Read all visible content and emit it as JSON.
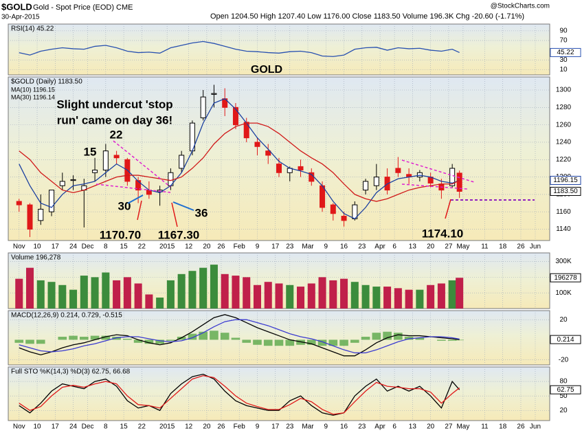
{
  "header": {
    "symbol": "$GOLD",
    "name": "Gold - Spot Price (EOD) CME",
    "date": "30-Apr-2015",
    "quote": "Open 1204.50  High 1207.40  Low 1176.00  Close 1183.50  Volume 196.3K  Chg -20.60 (-1.71%)",
    "source": "@StockCharts.com"
  },
  "chart_data": [
    {
      "type": "line",
      "title": "RSI(14) 45.22",
      "x": [
        0,
        3,
        6,
        9,
        12,
        15,
        18,
        21,
        24,
        27,
        30,
        33,
        36,
        39,
        42,
        45,
        48,
        51,
        54,
        57,
        60,
        63,
        66,
        69,
        72,
        75,
        78,
        81,
        84,
        87,
        90,
        93,
        96,
        99,
        102,
        105,
        108,
        111,
        114,
        117,
        120,
        122
      ],
      "xlim": [
        -3,
        147
      ],
      "ylim": [
        -1,
        104
      ],
      "yticks": [
        90,
        70,
        30,
        10
      ],
      "series": [
        {
          "color": "#2850b0",
          "values": [
            45,
            40,
            48,
            52,
            55,
            53,
            52,
            58,
            60,
            55,
            48,
            45,
            46,
            44,
            55,
            60,
            65,
            68,
            64,
            58,
            52,
            48,
            47,
            45,
            44,
            47,
            48,
            45,
            38,
            37,
            40,
            52,
            55,
            56,
            50,
            55,
            53,
            54,
            50,
            48,
            52,
            45.22
          ]
        }
      ]
    },
    {
      "type": "candlestick",
      "title": "$GOLD (Daily) 1183.50",
      "x": [
        0,
        3,
        6,
        9,
        12,
        15,
        18,
        21,
        24,
        27,
        30,
        33,
        36,
        39,
        42,
        45,
        48,
        51,
        54,
        57,
        60,
        63,
        66,
        69,
        72,
        75,
        78,
        81,
        84,
        87,
        90,
        93,
        96,
        99,
        102,
        105,
        108,
        111,
        114,
        117,
        120,
        122
      ],
      "open": [
        1172,
        1168,
        1150,
        1160,
        1190,
        1196,
        1185,
        1205,
        1208,
        1225,
        1220,
        1196,
        1185,
        1183,
        1190,
        1210,
        1230,
        1268,
        1295,
        1290,
        1280,
        1263,
        1240,
        1230,
        1215,
        1205,
        1212,
        1205,
        1190,
        1168,
        1155,
        1152,
        1185,
        1190,
        1200,
        1210,
        1203,
        1200,
        1200,
        1192,
        1190,
        1204.5
      ],
      "high": [
        1175,
        1170,
        1180,
        1185,
        1205,
        1202,
        1198,
        1222,
        1238,
        1230,
        1222,
        1200,
        1195,
        1190,
        1210,
        1230,
        1265,
        1300,
        1306,
        1302,
        1285,
        1268,
        1245,
        1238,
        1222,
        1212,
        1220,
        1210,
        1195,
        1170,
        1160,
        1172,
        1198,
        1215,
        1210,
        1223,
        1210,
        1208,
        1205,
        1198,
        1215,
        1207.4
      ],
      "low": [
        1160,
        1131,
        1145,
        1155,
        1185,
        1185,
        1142,
        1195,
        1200,
        1215,
        1190,
        1170,
        1175,
        1167,
        1185,
        1205,
        1225,
        1265,
        1280,
        1270,
        1255,
        1240,
        1225,
        1215,
        1200,
        1195,
        1200,
        1190,
        1160,
        1150,
        1143,
        1150,
        1180,
        1185,
        1180,
        1200,
        1192,
        1195,
        1188,
        1175,
        1188,
        1176
      ],
      "close": [
        1168,
        1140,
        1163,
        1185,
        1195,
        1197,
        1190,
        1208,
        1230,
        1222,
        1195,
        1185,
        1180,
        1185,
        1205,
        1225,
        1262,
        1292,
        1296,
        1280,
        1260,
        1245,
        1235,
        1225,
        1205,
        1210,
        1208,
        1195,
        1165,
        1158,
        1150,
        1168,
        1195,
        1200,
        1185,
        1205,
        1200,
        1205,
        1193,
        1185,
        1210,
        1183.5
      ],
      "up_color": "#000000",
      "down_color": "#e01818",
      "last_close_label": "1183.50",
      "series": [
        {
          "name": "MA(10) 1196.15",
          "color": "#1a3fa0",
          "values": [
            1215,
            1190,
            1170,
            1165,
            1180,
            1190,
            1192,
            1195,
            1205,
            1215,
            1208,
            1195,
            1185,
            1182,
            1190,
            1205,
            1230,
            1262,
            1285,
            1290,
            1278,
            1262,
            1245,
            1232,
            1218,
            1210,
            1207,
            1203,
            1190,
            1172,
            1158,
            1152,
            1165,
            1182,
            1192,
            1198,
            1200,
            1202,
            1200,
            1195,
            1193,
            1196.15
          ]
        },
        {
          "name": "MA(30) 1196.14",
          "color": "#d01818",
          "values": [
            1230,
            1220,
            1205,
            1195,
            1185,
            1182,
            1185,
            1190,
            1195,
            1200,
            1202,
            1202,
            1200,
            1198,
            1196,
            1200,
            1210,
            1222,
            1238,
            1250,
            1258,
            1262,
            1262,
            1258,
            1250,
            1240,
            1230,
            1222,
            1215,
            1205,
            1192,
            1180,
            1175,
            1172,
            1175,
            1180,
            1185,
            1188,
            1190,
            1192,
            1192,
            1196.14
          ]
        }
      ],
      "xlim": [
        -3,
        147
      ],
      "ylim": [
        1127,
        1315
      ],
      "yticks": [
        1140,
        1160,
        1180,
        1200,
        1220,
        1240,
        1260,
        1280,
        1300
      ],
      "xticks": [
        {
          "value": 0,
          "label": "Nov"
        },
        {
          "value": 5,
          "label": "10"
        },
        {
          "value": 10,
          "label": "17"
        },
        {
          "value": 15,
          "label": "24"
        },
        {
          "value": 19,
          "label": "Dec"
        },
        {
          "value": 24,
          "label": "8"
        },
        {
          "value": 29,
          "label": "15"
        },
        {
          "value": 34,
          "label": "22"
        },
        {
          "value": 41,
          "label": "2015"
        },
        {
          "value": 47,
          "label": "12"
        },
        {
          "value": 52,
          "label": "20"
        },
        {
          "value": 56,
          "label": "26"
        },
        {
          "value": 61,
          "label": "Feb"
        },
        {
          "value": 66,
          "label": "9"
        },
        {
          "value": 71,
          "label": "17"
        },
        {
          "value": 75,
          "label": "23"
        },
        {
          "value": 80,
          "label": "Mar"
        },
        {
          "value": 85,
          "label": "9"
        },
        {
          "value": 90,
          "label": "16"
        },
        {
          "value": 95,
          "label": "23"
        },
        {
          "value": 100,
          "label": "Apr"
        },
        {
          "value": 104,
          "label": "6"
        },
        {
          "value": 109,
          "label": "13"
        },
        {
          "value": 114,
          "label": "20"
        },
        {
          "value": 119,
          "label": "27"
        },
        {
          "value": 123,
          "label": "May"
        },
        {
          "value": 129,
          "label": "11"
        },
        {
          "value": 134,
          "label": "18"
        },
        {
          "value": 139,
          "label": "26"
        },
        {
          "value": 143,
          "label": "Jun"
        }
      ],
      "annotations": [
        {
          "text": "GOLD",
          "color": "#e01818"
        },
        {
          "text": "Slight undercut 'stop",
          "color": "#e01818"
        },
        {
          "text": "run' came on day 36!",
          "color": "#e01818"
        },
        {
          "text": "22",
          "color": "#1f6fd0"
        },
        {
          "text": "15",
          "color": "#1f6fd0"
        },
        {
          "text": "30",
          "color": "#1f6fd0"
        },
        {
          "text": "36",
          "color": "#1f6fd0"
        },
        {
          "text": "1170.70",
          "color": "#e01818"
        },
        {
          "text": "1167.30",
          "color": "#e01818"
        },
        {
          "text": "1174.10",
          "color": "#e01818"
        }
      ]
    },
    {
      "type": "bar",
      "title": "Volume 196,278",
      "x": [
        0,
        3,
        6,
        9,
        12,
        15,
        18,
        21,
        24,
        27,
        30,
        33,
        36,
        39,
        42,
        45,
        48,
        51,
        54,
        57,
        60,
        63,
        66,
        69,
        72,
        75,
        78,
        81,
        84,
        87,
        90,
        93,
        96,
        99,
        102,
        105,
        108,
        111,
        114,
        117,
        120,
        122
      ],
      "values": [
        190000,
        260000,
        180000,
        170000,
        150000,
        120000,
        210000,
        200000,
        230000,
        180000,
        200000,
        160000,
        90000,
        70000,
        180000,
        220000,
        240000,
        260000,
        280000,
        220000,
        210000,
        200000,
        150000,
        170000,
        160000,
        150000,
        140000,
        160000,
        200000,
        180000,
        190000,
        170000,
        150000,
        140000,
        140000,
        130000,
        120000,
        120000,
        150000,
        160000,
        180000,
        196278
      ],
      "up_color": "#3c8c3c",
      "down_color": "#c0204a",
      "xlim": [
        -3,
        147
      ],
      "ylim": [
        0,
        355000
      ],
      "yticks": [
        {
          "value": 100000,
          "label": "100K"
        },
        {
          "value": 200000,
          "label": "200K"
        },
        {
          "value": 300000,
          "label": "300K"
        }
      ]
    },
    {
      "type": "line",
      "title": "MACD(12,26,9) 0.214, 0.729, -0.515",
      "x": [
        0,
        3,
        6,
        9,
        12,
        15,
        18,
        21,
        24,
        27,
        30,
        33,
        36,
        39,
        42,
        45,
        48,
        51,
        54,
        57,
        60,
        63,
        66,
        69,
        72,
        75,
        78,
        81,
        84,
        87,
        90,
        93,
        96,
        99,
        102,
        105,
        108,
        111,
        114,
        117,
        120,
        122
      ],
      "xlim": [
        -3,
        147
      ],
      "ylim": [
        -25,
        29
      ],
      "yticks": [
        20,
        -20
      ],
      "histogram": [
        -3,
        -4,
        -4,
        0,
        3,
        4,
        3,
        4,
        4,
        3,
        1,
        -3,
        -4,
        -4,
        -1,
        3,
        6,
        8,
        9,
        7,
        2,
        -3,
        -5,
        -6,
        -6,
        -6,
        -5,
        -5,
        -6,
        -6,
        -6,
        -3,
        3,
        7,
        8,
        7,
        3,
        2,
        0,
        -1,
        -1,
        -0.515
      ],
      "histogram_color": "#5aa84a",
      "series": [
        {
          "color": "#000000",
          "values": [
            -8,
            -12,
            -15,
            -12,
            -8,
            -5,
            -3,
            0,
            3,
            5,
            4,
            0,
            -3,
            -5,
            -3,
            2,
            8,
            15,
            22,
            25,
            22,
            17,
            12,
            8,
            4,
            0,
            -2,
            -4,
            -8,
            -12,
            -16,
            -16,
            -10,
            -3,
            2,
            5,
            4,
            4,
            3,
            2,
            1,
            0.214
          ]
        },
        {
          "color": "#3a3ad0",
          "values": [
            -5,
            -8,
            -11,
            -12,
            -11,
            -9,
            -6,
            -4,
            -1,
            2,
            3,
            3,
            1,
            -1,
            -2,
            -1,
            2,
            7,
            13,
            18,
            20,
            20,
            17,
            14,
            10,
            6,
            3,
            1,
            -2,
            -6,
            -10,
            -13,
            -13,
            -10,
            -6,
            -2,
            1,
            2,
            3,
            3,
            2,
            0.729
          ]
        }
      ]
    },
    {
      "type": "line",
      "title": "Full STO %K(14,3) %D(3) 62.75, 66.68",
      "x": [
        0,
        3,
        6,
        9,
        12,
        15,
        18,
        21,
        24,
        27,
        30,
        33,
        36,
        39,
        42,
        45,
        48,
        51,
        54,
        57,
        60,
        63,
        66,
        69,
        72,
        75,
        78,
        81,
        84,
        87,
        90,
        93,
        96,
        99,
        102,
        105,
        108,
        111,
        114,
        117,
        120,
        122
      ],
      "xlim": [
        -3,
        147
      ],
      "ylim": [
        -1,
        110
      ],
      "yticks": [
        80,
        50,
        20
      ],
      "xticks": [
        {
          "value": 0,
          "label": "Nov"
        },
        {
          "value": 5,
          "label": "10"
        },
        {
          "value": 10,
          "label": "17"
        },
        {
          "value": 15,
          "label": "24"
        },
        {
          "value": 19,
          "label": "Dec"
        },
        {
          "value": 24,
          "label": "8"
        },
        {
          "value": 29,
          "label": "15"
        },
        {
          "value": 34,
          "label": "22"
        },
        {
          "value": 41,
          "label": "2015"
        },
        {
          "value": 47,
          "label": "12"
        },
        {
          "value": 52,
          "label": "20"
        },
        {
          "value": 56,
          "label": "26"
        },
        {
          "value": 61,
          "label": "Feb"
        },
        {
          "value": 66,
          "label": "9"
        },
        {
          "value": 71,
          "label": "17"
        },
        {
          "value": 75,
          "label": "23"
        },
        {
          "value": 80,
          "label": "Mar"
        },
        {
          "value": 85,
          "label": "9"
        },
        {
          "value": 90,
          "label": "16"
        },
        {
          "value": 95,
          "label": "23"
        },
        {
          "value": 100,
          "label": "Apr"
        },
        {
          "value": 104,
          "label": "6"
        },
        {
          "value": 109,
          "label": "13"
        },
        {
          "value": 114,
          "label": "20"
        },
        {
          "value": 119,
          "label": "27"
        },
        {
          "value": 123,
          "label": "May"
        },
        {
          "value": 129,
          "label": "11"
        },
        {
          "value": 134,
          "label": "18"
        },
        {
          "value": 139,
          "label": "26"
        },
        {
          "value": 143,
          "label": "Jun"
        }
      ],
      "series": [
        {
          "color": "#000000",
          "values": [
            30,
            15,
            35,
            60,
            75,
            70,
            65,
            80,
            85,
            70,
            40,
            25,
            30,
            20,
            55,
            75,
            90,
            95,
            85,
            60,
            40,
            30,
            25,
            20,
            20,
            40,
            50,
            30,
            15,
            10,
            15,
            50,
            70,
            85,
            60,
            70,
            60,
            70,
            50,
            25,
            80,
            62.75
          ]
        },
        {
          "color": "#e01818",
          "values": [
            35,
            20,
            28,
            50,
            68,
            72,
            68,
            75,
            80,
            75,
            50,
            32,
            30,
            25,
            45,
            65,
            85,
            92,
            88,
            70,
            50,
            35,
            28,
            22,
            22,
            32,
            45,
            38,
            22,
            12,
            15,
            38,
            60,
            78,
            70,
            68,
            65,
            65,
            58,
            35,
            55,
            66.68
          ]
        }
      ]
    }
  ]
}
